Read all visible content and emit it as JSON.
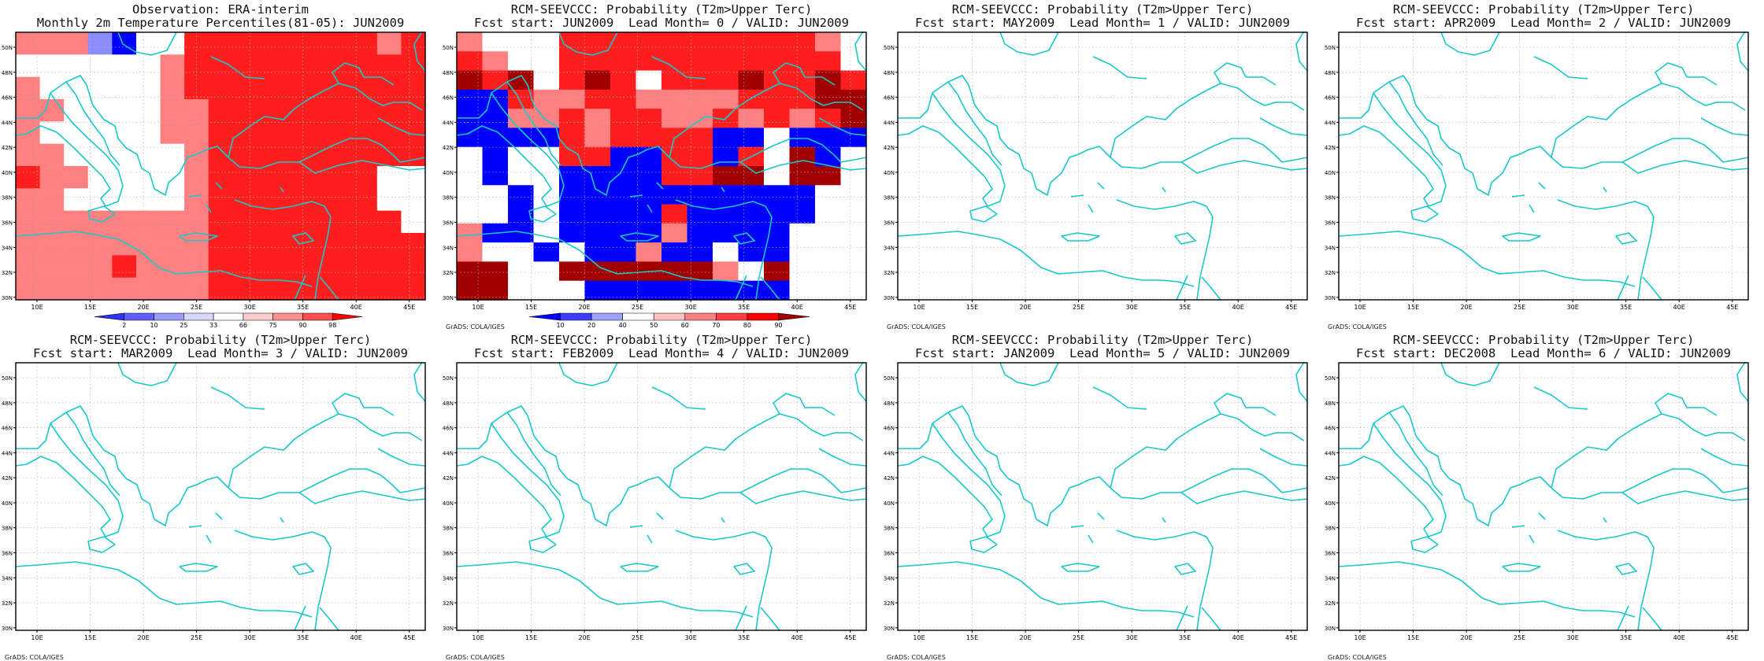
{
  "lon_ticks": [
    "10E",
    "15E",
    "20E",
    "25E",
    "30E",
    "35E",
    "40E",
    "45E"
  ],
  "lat_ticks": [
    "30N",
    "32N",
    "34N",
    "36N",
    "38N",
    "40N",
    "42N",
    "44N",
    "46N",
    "48N",
    "50N"
  ],
  "credit": "GrADS: COLA/IGES",
  "colors": {
    "coast": "#19c8c8",
    "grid": "#b4b4b4"
  },
  "panels": [
    {
      "title1": "Observation: ERA-interim",
      "title2": "Monthly 2m Temperature Percentiles(81-05): JUN2009",
      "colorbar": "obs",
      "has_data": true,
      "show_credit": false
    },
    {
      "title1": "RCM-SEEVCCC: Probability (T2m>Upper Terc)",
      "title2": "Fcst start: JUN2009  Lead Month= 0 / VALID: JUN2009",
      "colorbar": "prob",
      "has_data": true,
      "show_credit": true
    },
    {
      "title1": "RCM-SEEVCCC: Probability (T2m>Upper Terc)",
      "title2": "Fcst start: MAY2009  Lead Month= 1 / VALID: JUN2009",
      "colorbar": null,
      "has_data": false,
      "show_credit": true
    },
    {
      "title1": "RCM-SEEVCCC: Probability (T2m>Upper Terc)",
      "title2": "Fcst start: APR2009  Lead Month= 2 / VALID: JUN2009",
      "colorbar": null,
      "has_data": false,
      "show_credit": true
    },
    {
      "title1": "RCM-SEEVCCC: Probability (T2m>Upper Terc)",
      "title2": "Fcst start: MAR2009  Lead Month= 3 / VALID: JUN2009",
      "colorbar": null,
      "has_data": false,
      "show_credit": true
    },
    {
      "title1": "RCM-SEEVCCC: Probability (T2m>Upper Terc)",
      "title2": "Fcst start: FEB2009  Lead Month= 4 / VALID: JUN2009",
      "colorbar": null,
      "has_data": false,
      "show_credit": true
    },
    {
      "title1": "RCM-SEEVCCC: Probability (T2m>Upper Terc)",
      "title2": "Fcst start: JAN2009  Lead Month= 5 / VALID: JUN2009",
      "colorbar": null,
      "has_data": false,
      "show_credit": true
    },
    {
      "title1": "RCM-SEEVCCC: Probability (T2m>Upper Terc)",
      "title2": "Fcst start: DEC2008  Lead Month= 6 / VALID: JUN2009",
      "colorbar": null,
      "has_data": false,
      "show_credit": true
    }
  ],
  "colorbars": {
    "obs": {
      "labels": [
        "2",
        "10",
        "25",
        "33",
        "66",
        "75",
        "90",
        "98"
      ],
      "colors": [
        "#3030ff",
        "#6060ff",
        "#9a9aff",
        "#d8d8ff",
        "#ffffff",
        "#ffcccc",
        "#ff9090",
        "#ff5050",
        "#ff0000"
      ]
    },
    "prob": {
      "labels": [
        "10",
        "20",
        "40",
        "50",
        "60",
        "70",
        "80",
        "90"
      ],
      "colors": [
        "#0000ff",
        "#3c3cff",
        "#a0a0ff",
        "#ffffff",
        "#ffc0c0",
        "#ff8080",
        "#ff4040",
        "#ff0000",
        "#a00000"
      ]
    }
  },
  "grids": {
    "obs": [
      [
        "pink",
        "pink",
        "pink",
        "lblue",
        "blue",
        "white",
        "white",
        "red",
        "red",
        "red",
        "red",
        "red",
        "red",
        "red",
        "red",
        "pink",
        "red"
      ],
      [
        "white",
        "white",
        "white",
        "white",
        "white",
        "white",
        "pink",
        "red",
        "red",
        "red",
        "red",
        "red",
        "red",
        "red",
        "red",
        "red",
        "red"
      ],
      [
        "pink",
        "white",
        "white",
        "white",
        "white",
        "white",
        "pink",
        "red",
        "red",
        "red",
        "red",
        "red",
        "red",
        "red",
        "red",
        "red",
        "red"
      ],
      [
        "pink",
        "pink",
        "white",
        "white",
        "white",
        "white",
        "pink",
        "pink",
        "red",
        "red",
        "red",
        "red",
        "red",
        "red",
        "red",
        "red",
        "red"
      ],
      [
        "pink",
        "white",
        "white",
        "white",
        "white",
        "white",
        "pink",
        "pink",
        "red",
        "red",
        "red",
        "red",
        "red",
        "red",
        "red",
        "red",
        "red"
      ],
      [
        "pink",
        "pink",
        "white",
        "white",
        "white",
        "white",
        "white",
        "pink",
        "red",
        "red",
        "red",
        "red",
        "red",
        "red",
        "red",
        "red",
        "red"
      ],
      [
        "red",
        "pink",
        "pink",
        "white",
        "white",
        "white",
        "white",
        "pink",
        "red",
        "red",
        "red",
        "red",
        "red",
        "red",
        "red",
        "white",
        "white"
      ],
      [
        "pink",
        "pink",
        "white",
        "white",
        "white",
        "white",
        "white",
        "pink",
        "red",
        "red",
        "red",
        "red",
        "red",
        "red",
        "red",
        "white",
        "white"
      ],
      [
        "pink",
        "pink",
        "pink",
        "pink",
        "pink",
        "pink",
        "pink",
        "pink",
        "red",
        "red",
        "red",
        "red",
        "red",
        "red",
        "red",
        "red",
        "white"
      ],
      [
        "pink",
        "pink",
        "pink",
        "pink",
        "pink",
        "pink",
        "pink",
        "pink",
        "red",
        "red",
        "red",
        "red",
        "red",
        "red",
        "red",
        "red",
        "red"
      ],
      [
        "pink",
        "pink",
        "pink",
        "pink",
        "red",
        "pink",
        "pink",
        "pink",
        "red",
        "red",
        "red",
        "red",
        "red",
        "red",
        "red",
        "red",
        "red"
      ],
      [
        "pink",
        "pink",
        "pink",
        "pink",
        "pink",
        "pink",
        "pink",
        "pink",
        "red",
        "red",
        "red",
        "red",
        "red",
        "red",
        "red",
        "red",
        "red"
      ]
    ],
    "prob": [
      [
        "pink",
        "white",
        "white",
        "white",
        "red",
        "red",
        "red",
        "red",
        "red",
        "red",
        "red",
        "red",
        "red",
        "red",
        "pink",
        "white"
      ],
      [
        "red",
        "pink",
        "white",
        "white",
        "red",
        "red",
        "red",
        "red",
        "red",
        "red",
        "red",
        "red",
        "red",
        "red",
        "red",
        "white"
      ],
      [
        "dred",
        "red",
        "dred",
        "white",
        "red",
        "dred",
        "red",
        "white",
        "red",
        "red",
        "red",
        "dred",
        "red",
        "red",
        "dred",
        "red"
      ],
      [
        "blue",
        "blue",
        "red",
        "pink",
        "pink",
        "red",
        "red",
        "pink",
        "pink",
        "pink",
        "pink",
        "red",
        "red",
        "red",
        "dred",
        "dred"
      ],
      [
        "blue",
        "blue",
        "pink",
        "pink",
        "red",
        "pink",
        "red",
        "red",
        "pink",
        "pink",
        "red",
        "pink",
        "red",
        "pink",
        "red",
        "dred"
      ],
      [
        "blue",
        "blue",
        "blue",
        "blue",
        "red",
        "pink",
        "red",
        "red",
        "red",
        "red",
        "blue",
        "blue",
        "white",
        "blue",
        "blue",
        "blue"
      ],
      [
        "white",
        "blue",
        "white",
        "white",
        "red",
        "red",
        "blue",
        "blue",
        "red",
        "red",
        "blue",
        "red",
        "white",
        "dred",
        "blue",
        "white"
      ],
      [
        "white",
        "blue",
        "white",
        "white",
        "blue",
        "blue",
        "blue",
        "blue",
        "red",
        "red",
        "dred",
        "dred",
        "white",
        "dred",
        "dred",
        "white"
      ],
      [
        "white",
        "white",
        "blue",
        "white",
        "blue",
        "blue",
        "blue",
        "blue",
        "blue",
        "blue",
        "blue",
        "blue",
        "blue",
        "blue",
        "white",
        "white"
      ],
      [
        "white",
        "white",
        "blue",
        "white",
        "blue",
        "blue",
        "blue",
        "blue",
        "red",
        "blue",
        "blue",
        "blue",
        "blue",
        "blue",
        "white",
        "white"
      ],
      [
        "pink",
        "blue",
        "blue",
        "white",
        "blue",
        "blue",
        "blue",
        "blue",
        "pink",
        "blue",
        "blue",
        "blue",
        "blue",
        "white",
        "white",
        "white"
      ],
      [
        "pink",
        "white",
        "white",
        "blue",
        "white",
        "blue",
        "blue",
        "pink",
        "blue",
        "blue",
        "white",
        "blue",
        "blue",
        "white",
        "white",
        "white"
      ],
      [
        "dred",
        "dred",
        "white",
        "white",
        "dred",
        "dred",
        "dred",
        "dred",
        "dred",
        "dred",
        "pink",
        "white",
        "dred",
        "white",
        "white",
        "white"
      ],
      [
        "dred",
        "dred",
        "white",
        "white",
        "white",
        "blue",
        "blue",
        "blue",
        "blue",
        "blue",
        "blue",
        "blue",
        "blue",
        "white",
        "white",
        "white"
      ]
    ]
  }
}
